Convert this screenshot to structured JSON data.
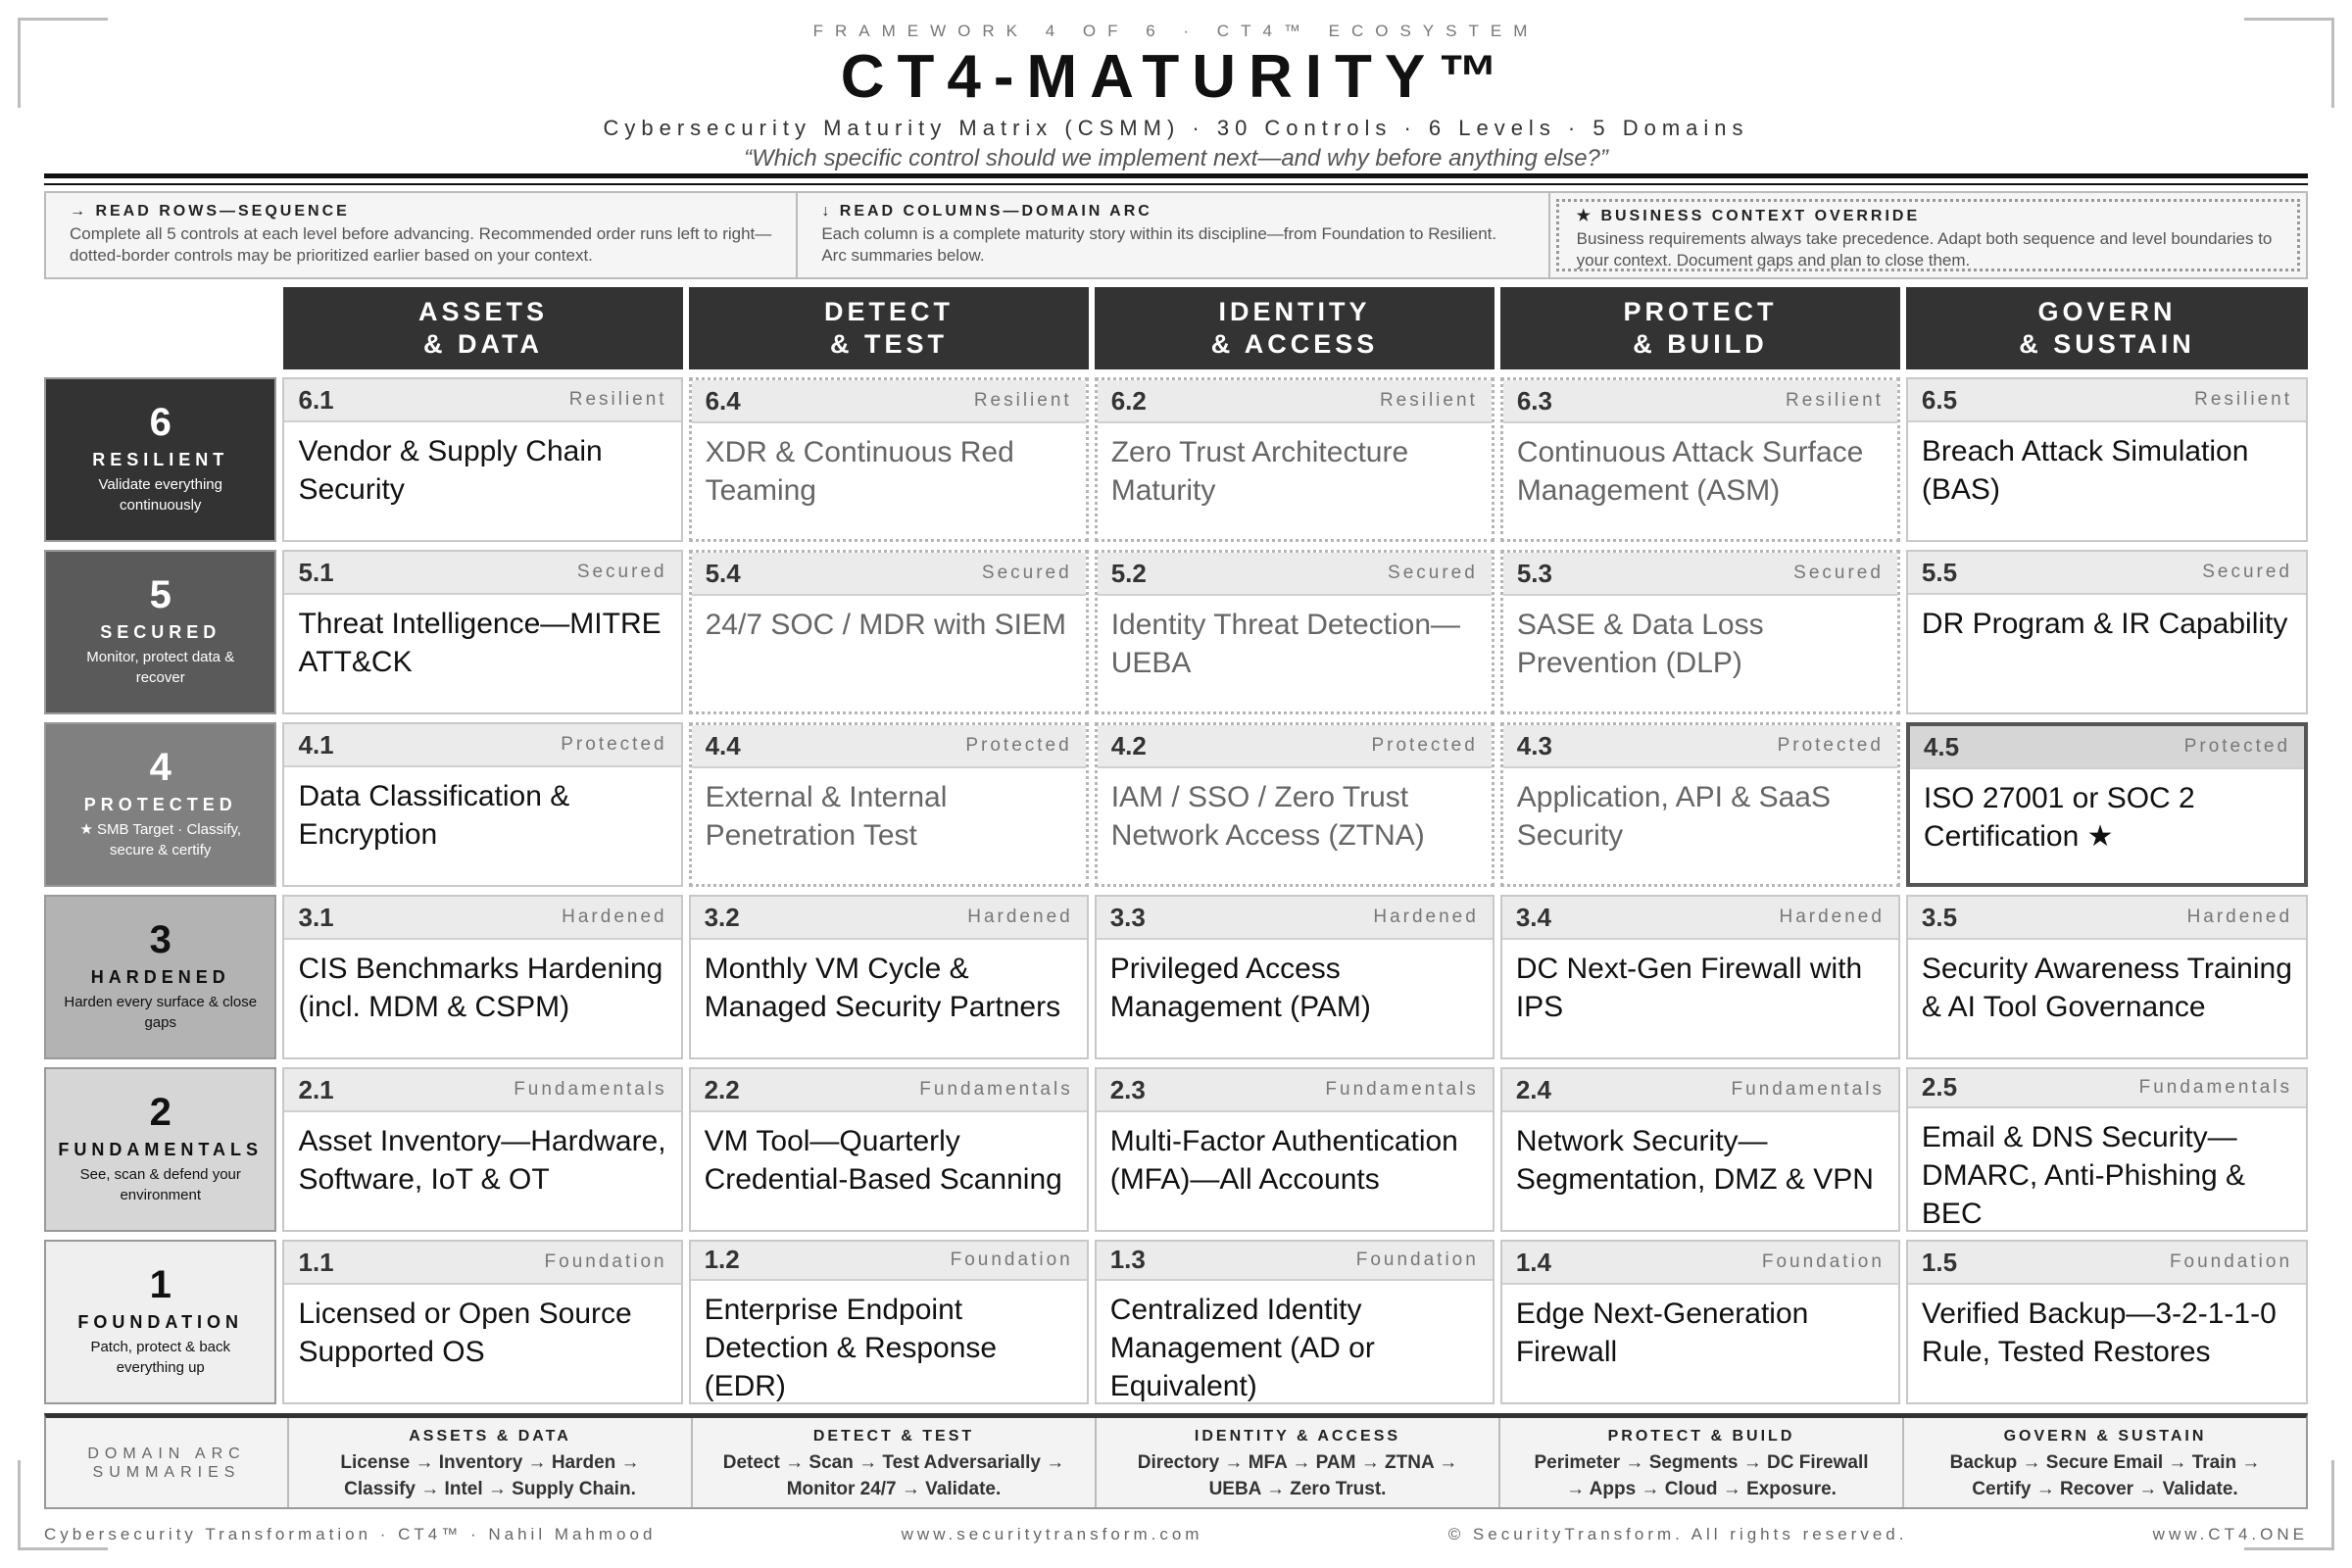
{
  "header": {
    "kicker": "FRAMEWORK 4 OF 6 · CT4™ ECOSYSTEM",
    "title": "CT4-MATURITY™",
    "subtitle": "Cybersecurity Maturity Matrix (CSMM) · 30 Controls · 6 Levels · 5 Domains",
    "question": "“Which specific control should we implement next—and why before anything else?”"
  },
  "guides": [
    {
      "title": "→ READ ROWS—SEQUENCE",
      "text": "Complete all 5 controls at each level before advancing. Recommended order runs left to right—dotted-border controls may be prioritized earlier based on your context."
    },
    {
      "title": "↓ READ COLUMNS—DOMAIN ARC",
      "text": "Each column is a complete maturity story within its discipline—from Foundation to Resilient. Arc summaries below."
    },
    {
      "title": "★ BUSINESS CONTEXT OVERRIDE",
      "text": "Business requirements always take precedence. Adapt both sequence and level boundaries to your context. Document gaps and plan to close them."
    }
  ],
  "columns": [
    {
      "line1": "ASSETS",
      "line2": "& DATA"
    },
    {
      "line1": "DETECT",
      "line2": "& TEST"
    },
    {
      "line1": "IDENTITY",
      "line2": "& ACCESS"
    },
    {
      "line1": "PROTECT",
      "line2": "& BUILD"
    },
    {
      "line1": "GOVERN",
      "line2": "& SUSTAIN"
    }
  ],
  "rows": [
    {
      "num": "6",
      "name": "RESILIENT",
      "desc": "Validate everything continuously",
      "bg": "#333333",
      "fg": "#ffffff",
      "cells": [
        {
          "id": "6.1",
          "level": "Resilient",
          "text": "Vendor & Supply Chain Security"
        },
        {
          "id": "6.4",
          "level": "Resilient",
          "text": "XDR & Continuous Red Teaming"
        },
        {
          "id": "6.2",
          "level": "Resilient",
          "text": "Zero Trust Architecture Maturity"
        },
        {
          "id": "6.3",
          "level": "Resilient",
          "text": "Continuous Attack Surface Management (ASM)"
        },
        {
          "id": "6.5",
          "level": "Resilient",
          "text": "Breach Attack Simulation (BAS)"
        }
      ]
    },
    {
      "num": "5",
      "name": "SECURED",
      "desc": "Monitor, protect data & recover",
      "bg": "#5a5a5a",
      "fg": "#ffffff",
      "cells": [
        {
          "id": "5.1",
          "level": "Secured",
          "text": "Threat Intelligence—MITRE ATT&CK"
        },
        {
          "id": "5.4",
          "level": "Secured",
          "text": "24/7 SOC / MDR with SIEM"
        },
        {
          "id": "5.2",
          "level": "Secured",
          "text": "Identity Threat Detection—UEBA"
        },
        {
          "id": "5.3",
          "level": "Secured",
          "text": "SASE & Data Loss Prevention (DLP)"
        },
        {
          "id": "5.5",
          "level": "Secured",
          "text": "DR Program & IR Capability"
        }
      ]
    },
    {
      "num": "4",
      "name": "PROTECTED",
      "desc": "★ SMB Target · Classify, secure & certify",
      "bg": "#808080",
      "fg": "#ffffff",
      "cells": [
        {
          "id": "4.1",
          "level": "Protected",
          "text": "Data Classification & Encryption"
        },
        {
          "id": "4.4",
          "level": "Protected",
          "text": "External & Internal Penetration Test"
        },
        {
          "id": "4.2",
          "level": "Protected",
          "text": "IAM / SSO / Zero Trust Network Access (ZTNA)"
        },
        {
          "id": "4.3",
          "level": "Protected",
          "text": "Application, API & SaaS Security"
        },
        {
          "id": "4.5",
          "level": "Protected",
          "text": "ISO 27001 or SOC 2 Certification ★"
        }
      ]
    },
    {
      "num": "3",
      "name": "HARDENED",
      "desc": "Harden every surface & close gaps",
      "bg": "#b3b3b3",
      "fg": "#111111",
      "cells": [
        {
          "id": "3.1",
          "level": "Hardened",
          "text": "CIS Benchmarks Hardening (incl. MDM & CSPM)"
        },
        {
          "id": "3.2",
          "level": "Hardened",
          "text": "Monthly VM Cycle & Managed Security Partners"
        },
        {
          "id": "3.3",
          "level": "Hardened",
          "text": "Privileged Access Management (PAM)"
        },
        {
          "id": "3.4",
          "level": "Hardened",
          "text": "DC Next-Gen Firewall with IPS"
        },
        {
          "id": "3.5",
          "level": "Hardened",
          "text": "Security Awareness Training & AI Tool Governance"
        }
      ]
    },
    {
      "num": "2",
      "name": "FUNDAMENTALS",
      "desc": "See, scan & defend your environment",
      "bg": "#d6d6d6",
      "fg": "#111111",
      "cells": [
        {
          "id": "2.1",
          "level": "Fundamentals",
          "text": "Asset Inventory—Hardware, Software, IoT & OT"
        },
        {
          "id": "2.2",
          "level": "Fundamentals",
          "text": "VM Tool—Quarterly Credential-Based Scanning"
        },
        {
          "id": "2.3",
          "level": "Fundamentals",
          "text": "Multi-Factor Authentication (MFA)—All Accounts"
        },
        {
          "id": "2.4",
          "level": "Fundamentals",
          "text": "Network Security—Segmentation, DMZ & VPN"
        },
        {
          "id": "2.5",
          "level": "Fundamentals",
          "text": "Email & DNS Security—DMARC, Anti-Phishing & BEC"
        }
      ]
    },
    {
      "num": "1",
      "name": "FOUNDATION",
      "desc": "Patch, protect & back everything up",
      "bg": "#efefef",
      "fg": "#111111",
      "cells": [
        {
          "id": "1.1",
          "level": "Foundation",
          "text": "Licensed or Open Source Supported OS"
        },
        {
          "id": "1.2",
          "level": "Foundation",
          "text": "Enterprise Endpoint Detection & Response (EDR)"
        },
        {
          "id": "1.3",
          "level": "Foundation",
          "text": "Centralized Identity Management (AD or Equivalent)"
        },
        {
          "id": "1.4",
          "level": "Foundation",
          "text": "Edge Next-Generation Firewall"
        },
        {
          "id": "1.5",
          "level": "Foundation",
          "text": "Verified Backup—3-2-1-1-0 Rule, Tested Restores"
        }
      ]
    }
  ],
  "arcs": {
    "label": "DOMAIN ARC SUMMARIES",
    "items": [
      {
        "title": "ASSETS & DATA",
        "text": "License → Inventory → Harden → Classify → Intel → Supply Chain."
      },
      {
        "title": "DETECT & TEST",
        "text": "Detect → Scan → Test Adversarially → Monitor 24/7 → Validate."
      },
      {
        "title": "IDENTITY & ACCESS",
        "text": "Directory → MFA → PAM → ZTNA → UEBA → Zero Trust."
      },
      {
        "title": "PROTECT & BUILD",
        "text": "Perimeter → Segments → DC Firewall → Apps → Cloud → Exposure."
      },
      {
        "title": "GOVERN & SUSTAIN",
        "text": "Backup → Secure Email → Train → Certify → Recover → Validate."
      }
    ]
  },
  "footer": {
    "credit": "Cybersecurity Transformation · CT4™ · Nahil Mahmood",
    "site": "www.securitytransform.com",
    "copyright": "© SecurityTransform. All rights reserved.",
    "url": "www.CT4.ONE"
  }
}
